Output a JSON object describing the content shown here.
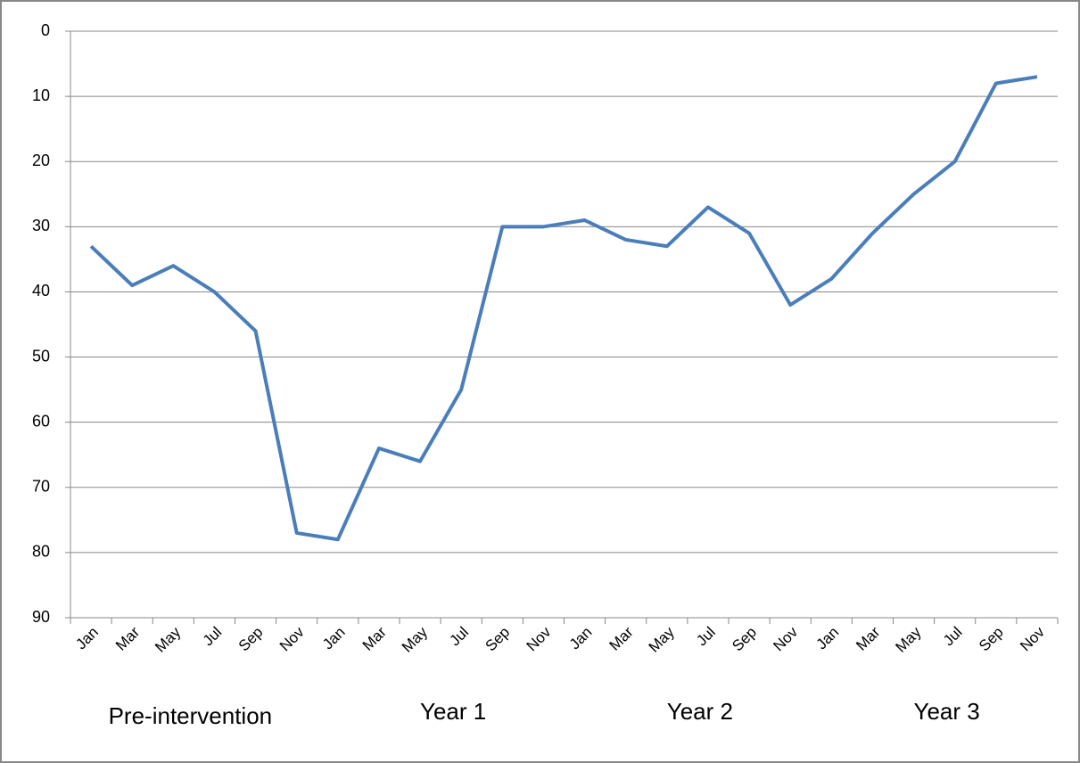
{
  "chart_data": {
    "type": "line",
    "categories": [
      "Jan",
      "Mar",
      "May",
      "Jul",
      "Sep",
      "Nov",
      "Jan",
      "Mar",
      "May",
      "Jul",
      "Sep",
      "Nov",
      "Jan",
      "Mar",
      "May",
      "Jul",
      "Sep",
      "Nov",
      "Jan",
      "Mar",
      "May",
      "Jul",
      "Sep",
      "Nov"
    ],
    "groups": [
      "Pre-intervention",
      "Year 1",
      "Year 2",
      "Year 3"
    ],
    "values": [
      33,
      39,
      36,
      40,
      46,
      77,
      78,
      64,
      66,
      55,
      30,
      30,
      29,
      32,
      33,
      27,
      31,
      42,
      38,
      31,
      25,
      20,
      8,
      7
    ],
    "color": "#4a7ebb",
    "ylim": [
      0,
      90
    ],
    "y_inverted": true,
    "yticks": [
      0,
      10,
      20,
      30,
      40,
      50,
      60,
      70,
      80,
      90
    ],
    "grid": true
  }
}
